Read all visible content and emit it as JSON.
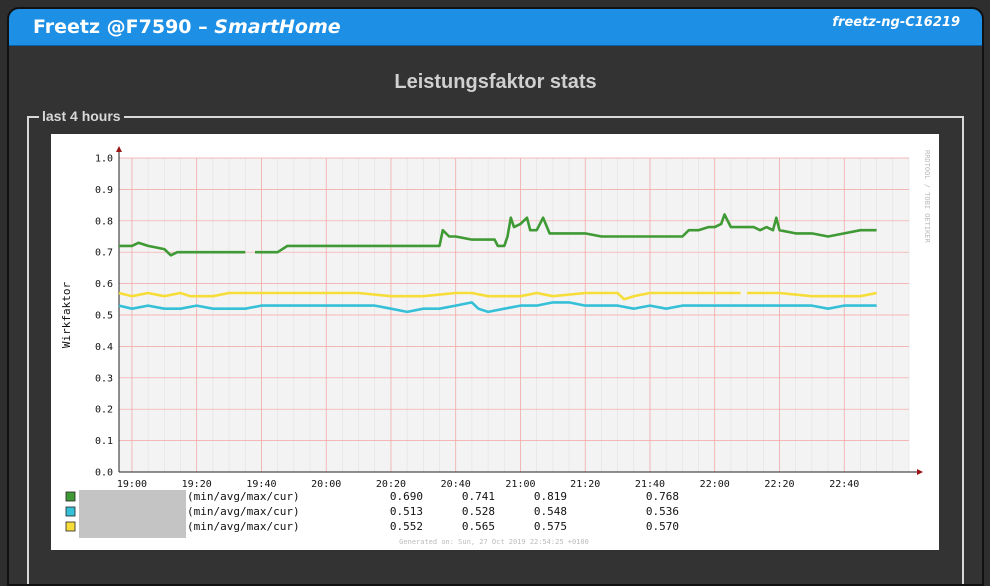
{
  "header": {
    "title_main": "Freetz @F7590 – ",
    "title_italic": "SmartHome",
    "version": "freetz-ng-C16219"
  },
  "page_title": "Leistungsfaktor stats",
  "section": {
    "legend": "last 4 hours"
  },
  "graph": {
    "watermark": "RRDTOOL / TOBI OETIKER",
    "footer": "Generated on: Sun, 27 Oct 2019 22:54:25 +0100",
    "legend_rows": [
      {
        "color": "#3f9a35",
        "label": "(min/avg/max/cur)",
        "min": "0.690",
        "avg": "0.741",
        "max": "0.819",
        "cur": "0.768"
      },
      {
        "color": "#35c0d8",
        "label": "(min/avg/max/cur)",
        "min": "0.513",
        "avg": "0.528",
        "max": "0.548",
        "cur": "0.536"
      },
      {
        "color": "#f7dd3a",
        "label": "(min/avg/max/cur)",
        "min": "0.552",
        "avg": "0.565",
        "max": "0.575",
        "cur": "0.570"
      }
    ]
  },
  "chart_data": {
    "type": "line",
    "ylabel": "Wirkfaktor",
    "ylim": [
      0.0,
      1.0
    ],
    "y_ticks": [
      "0.0",
      "0.1",
      "0.2",
      "0.3",
      "0.4",
      "0.5",
      "0.6",
      "0.7",
      "0.8",
      "0.9",
      "1.0"
    ],
    "x_ticks": [
      "19:00",
      "19:20",
      "19:40",
      "20:00",
      "20:20",
      "20:40",
      "21:00",
      "21:20",
      "21:40",
      "22:00",
      "22:20",
      "22:40"
    ],
    "x_range": [
      "18:56",
      "23:00"
    ],
    "grid": true,
    "series": [
      {
        "color": "#3f9a35",
        "points": [
          [
            "18:56",
            0.72
          ],
          [
            "19:00",
            0.72
          ],
          [
            "19:02",
            0.73
          ],
          [
            "19:05",
            0.72
          ],
          [
            "19:10",
            0.71
          ],
          [
            "19:12",
            0.69
          ],
          [
            "19:14",
            0.7
          ],
          [
            "19:20",
            0.7
          ],
          [
            "19:25",
            0.7
          ],
          [
            "19:30",
            0.7
          ],
          [
            "19:35",
            0.7
          ],
          [
            "19:37",
            null
          ],
          [
            "19:38",
            0.7
          ],
          [
            "19:45",
            0.7
          ],
          [
            "19:48",
            0.72
          ],
          [
            "19:55",
            0.72
          ],
          [
            "20:00",
            0.72
          ],
          [
            "20:10",
            0.72
          ],
          [
            "20:15",
            0.72
          ],
          [
            "20:20",
            0.72
          ],
          [
            "20:25",
            0.72
          ],
          [
            "20:30",
            0.72
          ],
          [
            "20:35",
            0.72
          ],
          [
            "20:36",
            0.77
          ],
          [
            "20:38",
            0.75
          ],
          [
            "20:40",
            0.75
          ],
          [
            "20:45",
            0.74
          ],
          [
            "20:52",
            0.74
          ],
          [
            "20:53",
            0.72
          ],
          [
            "20:55",
            0.72
          ],
          [
            "20:56",
            0.75
          ],
          [
            "20:57",
            0.81
          ],
          [
            "20:58",
            0.78
          ],
          [
            "21:00",
            0.79
          ],
          [
            "21:02",
            0.81
          ],
          [
            "21:03",
            0.77
          ],
          [
            "21:05",
            0.77
          ],
          [
            "21:07",
            0.81
          ],
          [
            "21:09",
            0.76
          ],
          [
            "21:15",
            0.76
          ],
          [
            "21:20",
            0.76
          ],
          [
            "21:25",
            0.75
          ],
          [
            "21:30",
            0.75
          ],
          [
            "21:35",
            0.75
          ],
          [
            "21:40",
            0.75
          ],
          [
            "21:45",
            0.75
          ],
          [
            "21:50",
            0.75
          ],
          [
            "21:52",
            0.77
          ],
          [
            "21:55",
            0.77
          ],
          [
            "21:58",
            0.78
          ],
          [
            "22:00",
            0.78
          ],
          [
            "22:02",
            0.79
          ],
          [
            "22:03",
            0.82
          ],
          [
            "22:05",
            0.78
          ],
          [
            "22:08",
            0.78
          ],
          [
            "22:12",
            0.78
          ],
          [
            "22:14",
            0.77
          ],
          [
            "22:16",
            0.78
          ],
          [
            "22:18",
            0.77
          ],
          [
            "22:19",
            0.81
          ],
          [
            "22:20",
            0.77
          ],
          [
            "22:25",
            0.76
          ],
          [
            "22:30",
            0.76
          ],
          [
            "22:35",
            0.75
          ],
          [
            "22:40",
            0.76
          ],
          [
            "22:45",
            0.77
          ],
          [
            "22:50",
            0.77
          ]
        ]
      },
      {
        "color": "#f7dd3a",
        "points": [
          [
            "18:56",
            0.57
          ],
          [
            "19:00",
            0.56
          ],
          [
            "19:05",
            0.57
          ],
          [
            "19:10",
            0.56
          ],
          [
            "19:15",
            0.57
          ],
          [
            "19:18",
            0.56
          ],
          [
            "19:25",
            0.56
          ],
          [
            "19:30",
            0.57
          ],
          [
            "19:40",
            0.57
          ],
          [
            "19:50",
            0.57
          ],
          [
            "20:00",
            0.57
          ],
          [
            "20:10",
            0.57
          ],
          [
            "20:20",
            0.56
          ],
          [
            "20:30",
            0.56
          ],
          [
            "20:40",
            0.57
          ],
          [
            "20:45",
            0.57
          ],
          [
            "20:50",
            0.56
          ],
          [
            "21:00",
            0.56
          ],
          [
            "21:05",
            0.57
          ],
          [
            "21:10",
            0.56
          ],
          [
            "21:20",
            0.57
          ],
          [
            "21:30",
            0.57
          ],
          [
            "21:32",
            0.55
          ],
          [
            "21:35",
            0.56
          ],
          [
            "21:40",
            0.57
          ],
          [
            "21:50",
            0.57
          ],
          [
            "22:00",
            0.57
          ],
          [
            "22:08",
            0.57
          ],
          [
            "22:09",
            null
          ],
          [
            "22:10",
            0.57
          ],
          [
            "22:20",
            0.57
          ],
          [
            "22:30",
            0.56
          ],
          [
            "22:40",
            0.56
          ],
          [
            "22:45",
            0.56
          ],
          [
            "22:50",
            0.57
          ]
        ]
      },
      {
        "color": "#35c0d8",
        "points": [
          [
            "18:56",
            0.53
          ],
          [
            "19:00",
            0.52
          ],
          [
            "19:05",
            0.53
          ],
          [
            "19:10",
            0.52
          ],
          [
            "19:15",
            0.52
          ],
          [
            "19:20",
            0.53
          ],
          [
            "19:25",
            0.52
          ],
          [
            "19:35",
            0.52
          ],
          [
            "19:40",
            0.53
          ],
          [
            "19:50",
            0.53
          ],
          [
            "20:00",
            0.53
          ],
          [
            "20:10",
            0.53
          ],
          [
            "20:15",
            0.53
          ],
          [
            "20:20",
            0.52
          ],
          [
            "20:25",
            0.51
          ],
          [
            "20:30",
            0.52
          ],
          [
            "20:35",
            0.52
          ],
          [
            "20:40",
            0.53
          ],
          [
            "20:45",
            0.54
          ],
          [
            "20:47",
            0.52
          ],
          [
            "20:50",
            0.51
          ],
          [
            "20:55",
            0.52
          ],
          [
            "21:00",
            0.53
          ],
          [
            "21:05",
            0.53
          ],
          [
            "21:10",
            0.54
          ],
          [
            "21:15",
            0.54
          ],
          [
            "21:20",
            0.53
          ],
          [
            "21:30",
            0.53
          ],
          [
            "21:35",
            0.52
          ],
          [
            "21:40",
            0.53
          ],
          [
            "21:45",
            0.52
          ],
          [
            "21:50",
            0.53
          ],
          [
            "22:00",
            0.53
          ],
          [
            "22:10",
            0.53
          ],
          [
            "22:20",
            0.53
          ],
          [
            "22:30",
            0.53
          ],
          [
            "22:35",
            0.52
          ],
          [
            "22:40",
            0.53
          ],
          [
            "22:45",
            0.53
          ],
          [
            "22:50",
            0.53
          ]
        ]
      }
    ]
  }
}
